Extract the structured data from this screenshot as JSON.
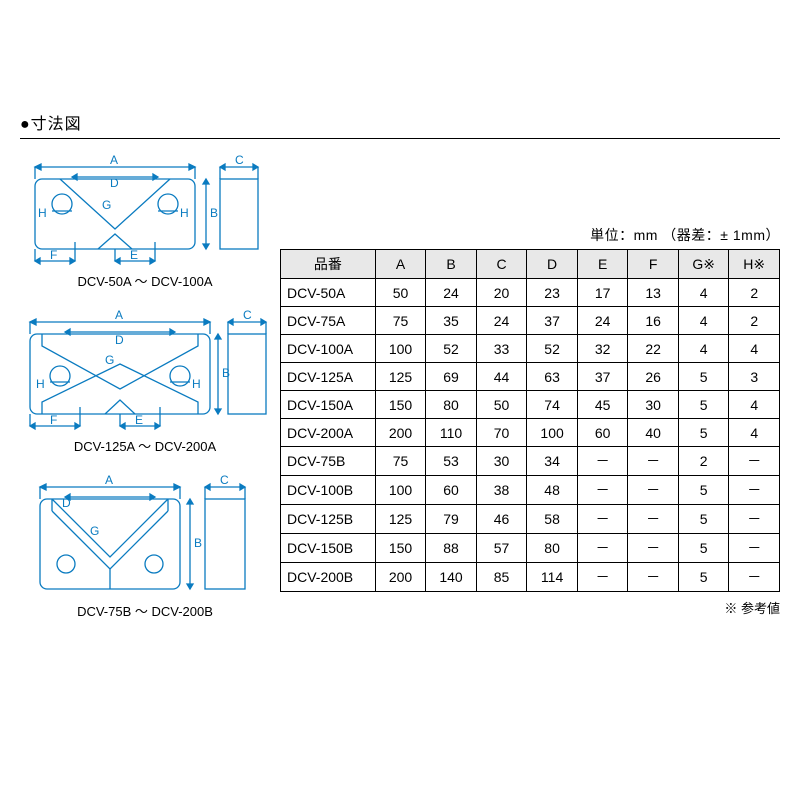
{
  "section_title": "●寸法図",
  "unit_label": "単位：mm （器差：± 1mm）",
  "ref_note": "※ 参考値",
  "diagram_stroke": "#0a7bc0",
  "captions": {
    "a": "DCV-50A ～ DCV-100A",
    "b": "DCV-125A ～ DCV-200A",
    "c": "DCV-75B ～ DCV-200B"
  },
  "dim_letters": [
    "A",
    "B",
    "C",
    "D",
    "E",
    "F",
    "G",
    "H"
  ],
  "table": {
    "columns": [
      "品番",
      "A",
      "B",
      "C",
      "D",
      "E",
      "F",
      "G※",
      "H※"
    ],
    "rows": [
      [
        "DCV-50A",
        "50",
        "24",
        "20",
        "23",
        "17",
        "13",
        "4",
        "2"
      ],
      [
        "DCV-75A",
        "75",
        "35",
        "24",
        "37",
        "24",
        "16",
        "4",
        "2"
      ],
      [
        "DCV-100A",
        "100",
        "52",
        "33",
        "52",
        "32",
        "22",
        "4",
        "4"
      ],
      [
        "DCV-125A",
        "125",
        "69",
        "44",
        "63",
        "37",
        "26",
        "5",
        "3"
      ],
      [
        "DCV-150A",
        "150",
        "80",
        "50",
        "74",
        "45",
        "30",
        "5",
        "4"
      ],
      [
        "DCV-200A",
        "200",
        "110",
        "70",
        "100",
        "60",
        "40",
        "5",
        "4"
      ],
      [
        "DCV-75B",
        "75",
        "53",
        "30",
        "34",
        "－",
        "－",
        "2",
        "－"
      ],
      [
        "DCV-100B",
        "100",
        "60",
        "38",
        "48",
        "－",
        "－",
        "5",
        "－"
      ],
      [
        "DCV-125B",
        "125",
        "79",
        "46",
        "58",
        "－",
        "－",
        "5",
        "－"
      ],
      [
        "DCV-150B",
        "150",
        "88",
        "57",
        "80",
        "－",
        "－",
        "5",
        "－"
      ],
      [
        "DCV-200B",
        "200",
        "140",
        "85",
        "114",
        "－",
        "－",
        "5",
        "－"
      ]
    ]
  }
}
